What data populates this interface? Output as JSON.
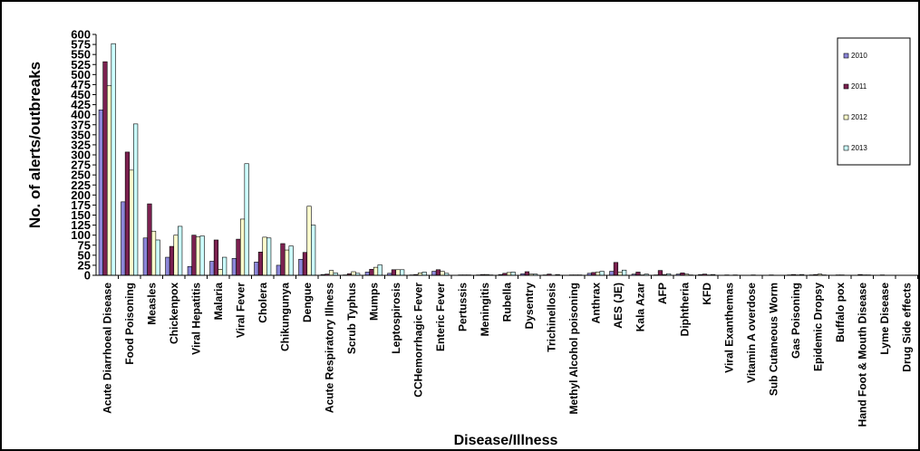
{
  "chart_data": {
    "type": "bar",
    "title": "",
    "xlabel": "Disease/Illness",
    "ylabel": "No. of alerts/outbreaks",
    "ylim": [
      0,
      600
    ],
    "yticks": [
      "0",
      "25",
      "50",
      "75",
      "100",
      "125",
      "150",
      "175",
      "200",
      "225",
      "250",
      "275",
      "300",
      "325",
      "350",
      "375",
      "400",
      "425",
      "450",
      "475",
      "500",
      "525",
      "550",
      "575",
      "600"
    ],
    "grid": false,
    "legend_position": "top-right",
    "categories": [
      "Acute Diarrhoeal Disease",
      "Food Poisoning",
      "Measles",
      "Chickenpox",
      "Viral Hepatitis",
      "Malaria",
      "Viral Fever",
      "Cholera",
      "Chikungunya",
      "Dengue",
      "Acute Respiratory Illness",
      "Scrub Typhus",
      "Mumps",
      "Leptospirosis",
      "CCHemorrhagic Fever",
      "Enteric Fever",
      "Pertussis",
      "Meningitis",
      "Rubella",
      "Dysentry",
      "Trichinellosis",
      "Methyl Alcohol poisoning",
      "Anthrax",
      "AES (JE)",
      "Kala Azar",
      "AFP",
      "Diphtheria",
      "KFD",
      "Viral Exanthemas",
      "Vitamin A overdose",
      "Sub Cutaneous Worm",
      "Gas Poisoning",
      "Epidemic Dropsy",
      "Buffalo pox",
      "Hand Foot & Mouth Disease",
      "Lyme Disease",
      "Drug Side effects"
    ],
    "series": [
      {
        "name": "2010",
        "color": "#8C86D9",
        "values": [
          412,
          183,
          93,
          45,
          22,
          35,
          42,
          33,
          25,
          40,
          2,
          1,
          8,
          5,
          1,
          10,
          0,
          1,
          2,
          4,
          1,
          0,
          5,
          10,
          3,
          1,
          3,
          2,
          0,
          0,
          0,
          1,
          1,
          0,
          0,
          0,
          0
        ]
      },
      {
        "name": "2011",
        "color": "#7B2150",
        "values": [
          532,
          307,
          178,
          72,
          100,
          88,
          90,
          58,
          79,
          57,
          3,
          4,
          15,
          14,
          2,
          14,
          1,
          2,
          5,
          9,
          3,
          1,
          7,
          32,
          8,
          12,
          6,
          3,
          1,
          0,
          1,
          2,
          2,
          1,
          2,
          1,
          0
        ]
      },
      {
        "name": "2012",
        "color": "#FFFFCC",
        "values": [
          472,
          262,
          110,
          100,
          96,
          15,
          140,
          95,
          63,
          172,
          12,
          9,
          20,
          14,
          6,
          10,
          1,
          2,
          7,
          3,
          0,
          1,
          8,
          8,
          1,
          2,
          3,
          1,
          0,
          1,
          0,
          1,
          3,
          1,
          1,
          0,
          0
        ]
      },
      {
        "name": "2013",
        "color": "#CCFFFF",
        "values": [
          577,
          377,
          88,
          122,
          98,
          45,
          278,
          93,
          73,
          125,
          6,
          5,
          26,
          14,
          8,
          5,
          1,
          1,
          8,
          3,
          2,
          1,
          10,
          13,
          3,
          4,
          1,
          2,
          1,
          0,
          0,
          2,
          1,
          0,
          1,
          0,
          0
        ]
      }
    ]
  }
}
